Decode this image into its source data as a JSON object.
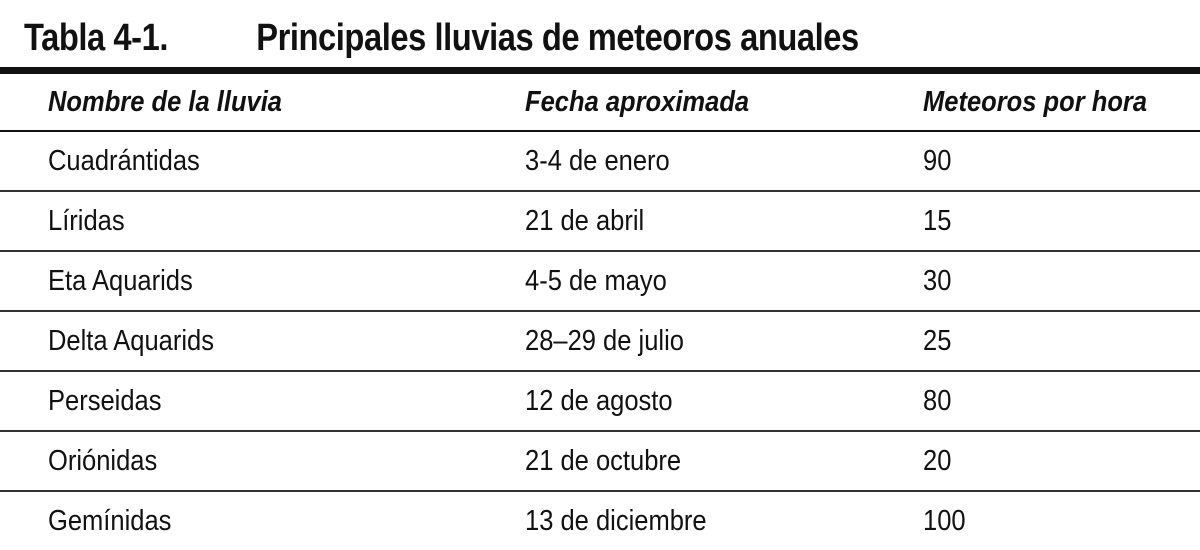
{
  "table": {
    "number": "Tabla 4-1.",
    "title": "Principales lluvias de meteoros anuales",
    "headers": [
      "Nombre de la lluvia",
      "Fecha aproximada",
      "Meteoros por hora"
    ],
    "rows": [
      [
        "Cuadrántidas",
        "3-4 de enero",
        "90"
      ],
      [
        "Líridas",
        "21 de abril",
        "15"
      ],
      [
        "Eta Aquarids",
        "4-5 de mayo",
        "30"
      ],
      [
        "Delta Aquarids",
        "28–29 de julio",
        "25"
      ],
      [
        "Perseidas",
        "12 de agosto",
        "80"
      ],
      [
        "Oriónidas",
        "21 de octubre",
        "20"
      ],
      [
        "Gemínidas",
        "13 de diciembre",
        "100"
      ]
    ]
  }
}
